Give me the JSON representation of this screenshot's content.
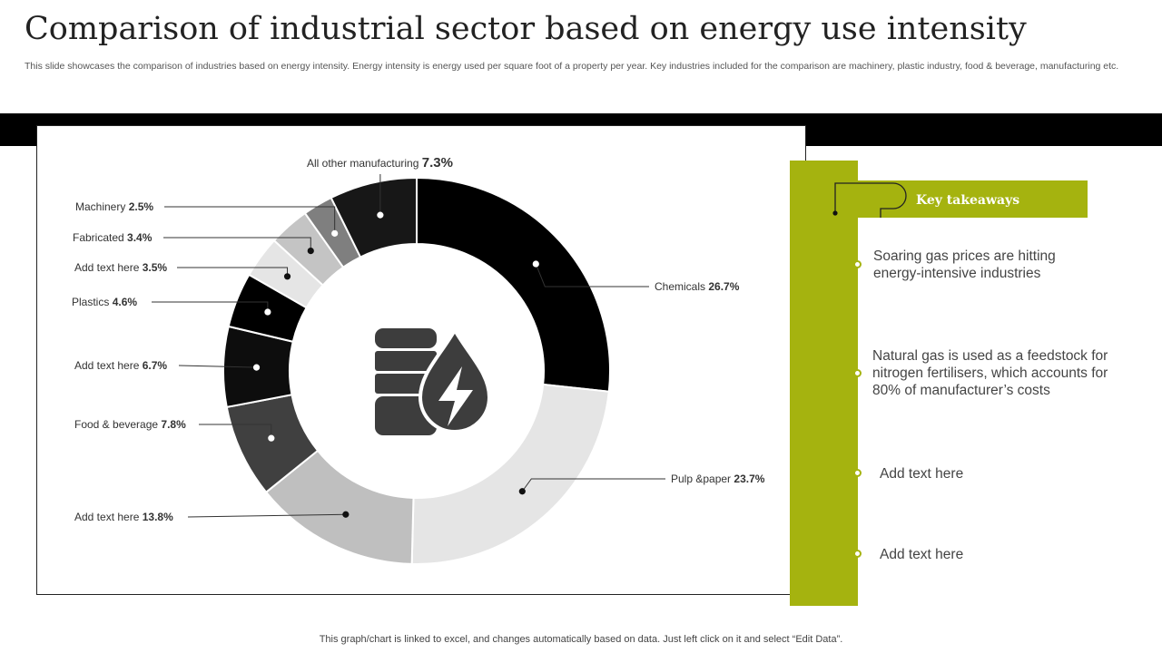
{
  "title": "Comparison of industrial sector based on energy use intensity",
  "subtitle": "This slide showcases the comparison of industries based on energy intensity. Energy intensity is energy used per square foot of a property per year. Key industries included for the comparison are machinery, plastic industry, food & beverage, manufacturing etc.",
  "footer": "This graph/chart is linked to excel, and changes automatically based on data. Just left click on it and select “Edit Data”.",
  "center_icon": "database-energy-drop-icon",
  "colors": {
    "accent": "#a5b30f",
    "band": "#000000"
  },
  "chart_data": {
    "type": "pie",
    "variant": "donut",
    "title": "",
    "slices": [
      {
        "label": "Chemicals",
        "value": 26.7,
        "value_text": "26.7%",
        "color": "#000000"
      },
      {
        "label": "Pulp &paper",
        "value": 23.7,
        "value_text": "23.7%",
        "color": "#e5e5e5"
      },
      {
        "label": "Add text here",
        "value": 13.8,
        "value_text": "13.8%",
        "color": "#bfbfbf"
      },
      {
        "label": "Food & beverage",
        "value": 7.8,
        "value_text": "7.8%",
        "color": "#404040"
      },
      {
        "label": "Add text here",
        "value": 6.7,
        "value_text": "6.7%",
        "color": "#0d0d0d"
      },
      {
        "label": "Plastics",
        "value": 4.6,
        "value_text": "4.6%",
        "color": "#000000"
      },
      {
        "label": "Add text here",
        "value": 3.5,
        "value_text": "3.5%",
        "color": "#e5e5e5"
      },
      {
        "label": "Fabricated",
        "value": 3.4,
        "value_text": "3.4%",
        "color": "#c4c4c4"
      },
      {
        "label": "Machinery",
        "value": 2.5,
        "value_text": "2.5%",
        "color": "#7f7f7f"
      },
      {
        "label": "All other manufacturing",
        "value": 7.3,
        "value_text": "7.3%",
        "color": "#171717"
      }
    ]
  },
  "takeaways": {
    "header": "Key takeaways",
    "items": [
      {
        "text": "Soaring gas prices are hitting energy-intensive  industries"
      },
      {
        "text": "Natural gas is used as a feedstock for nitrogen fertilisers, which accounts for 80% of manufacturer’s  costs"
      },
      {
        "text": "Add text here"
      },
      {
        "text": "Add text here"
      }
    ]
  }
}
